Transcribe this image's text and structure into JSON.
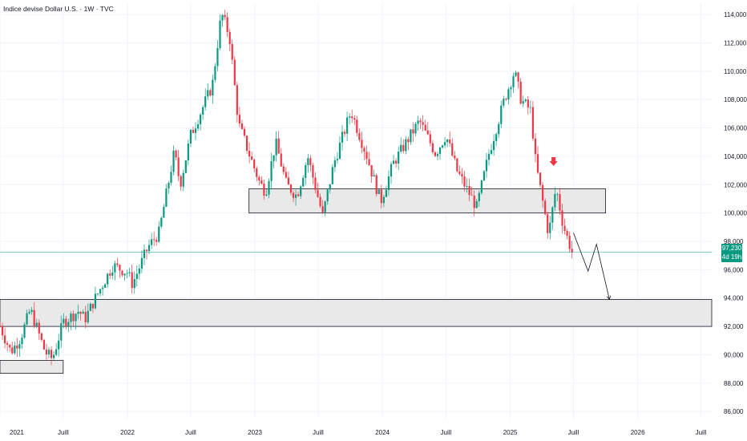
{
  "header": {
    "title": "Indice devise Dollar U.S. · 1W · TVC"
  },
  "last_price": {
    "value": "97,230",
    "countdown": "4d 19h"
  },
  "colors": {
    "up": "#089981",
    "down": "#f23645",
    "zone_fill": "#e9e9e9",
    "zone_border": "#131722",
    "grid": "#f0f3fa",
    "arrow": "#f23645",
    "projection": "#131722"
  },
  "chart_data": {
    "type": "candlestick",
    "title": "Indice devise Dollar U.S. · 1W · TVC",
    "ylim": [
      85.5,
      114.8
    ],
    "xlim": [
      "2021-01-01",
      "2026-08-01"
    ],
    "y_ticks": [
      {
        "value": 86,
        "label": "86,000"
      },
      {
        "value": 88,
        "label": "88,000"
      },
      {
        "value": 90,
        "label": "90,000"
      },
      {
        "value": 92,
        "label": "92,000"
      },
      {
        "value": 94,
        "label": "94,000"
      },
      {
        "value": 96,
        "label": "96,000"
      },
      {
        "value": 98,
        "label": "98,000"
      },
      {
        "value": 100,
        "label": "100,000"
      },
      {
        "value": 102,
        "label": "102,000"
      },
      {
        "value": 104,
        "label": "104,000"
      },
      {
        "value": 106,
        "label": "106,000"
      },
      {
        "value": 108,
        "label": "108,000"
      },
      {
        "value": 110,
        "label": "110,000"
      },
      {
        "value": 112,
        "label": "112,000"
      },
      {
        "value": 114,
        "label": "114,000"
      }
    ],
    "x_ticks": [
      {
        "date": "2021-01-01",
        "label": "2021"
      },
      {
        "date": "2021-07-01",
        "label": "Juill"
      },
      {
        "date": "2022-01-01",
        "label": "2022"
      },
      {
        "date": "2022-07-01",
        "label": "Juill"
      },
      {
        "date": "2023-01-01",
        "label": "2023"
      },
      {
        "date": "2023-07-01",
        "label": "Juill"
      },
      {
        "date": "2024-01-01",
        "label": "2024"
      },
      {
        "date": "2024-07-01",
        "label": "Juill"
      },
      {
        "date": "2025-01-01",
        "label": "2025"
      },
      {
        "date": "2025-07-01",
        "label": "Juill"
      },
      {
        "date": "2026-01-01",
        "label": "2026"
      },
      {
        "date": "2026-07-01",
        "label": "Juill"
      }
    ],
    "path": [
      [
        "2021-01-01",
        92.0
      ],
      [
        "2021-02-01",
        90.2
      ],
      [
        "2021-03-01",
        91.2
      ],
      [
        "2021-03-29",
        93.2
      ],
      [
        "2021-05-10",
        90.2
      ],
      [
        "2021-05-31",
        89.7
      ],
      [
        "2021-07-01",
        92.3
      ],
      [
        "2021-08-15",
        93.1
      ],
      [
        "2021-09-01",
        92.5
      ],
      [
        "2021-10-01",
        94.0
      ],
      [
        "2021-11-20",
        96.3
      ],
      [
        "2022-01-01",
        95.8
      ],
      [
        "2022-01-15",
        95.0
      ],
      [
        "2022-03-01",
        97.6
      ],
      [
        "2022-04-01",
        98.6
      ],
      [
        "2022-05-15",
        104.3
      ],
      [
        "2022-06-01",
        102.0
      ],
      [
        "2022-07-01",
        105.5
      ],
      [
        "2022-09-01",
        109.0
      ],
      [
        "2022-09-27",
        114.1
      ],
      [
        "2022-10-20",
        112.5
      ],
      [
        "2022-11-15",
        106.3
      ],
      [
        "2022-12-15",
        104.2
      ],
      [
        "2023-01-15",
        102.1
      ],
      [
        "2023-02-01",
        101.5
      ],
      [
        "2023-03-01",
        105.0
      ],
      [
        "2023-04-01",
        102.0
      ],
      [
        "2023-05-01",
        101.2
      ],
      [
        "2023-06-01",
        104.0
      ],
      [
        "2023-07-14",
        99.8
      ],
      [
        "2023-08-15",
        103.5
      ],
      [
        "2023-10-03",
        107.2
      ],
      [
        "2023-11-15",
        104.2
      ],
      [
        "2023-12-27",
        100.8
      ],
      [
        "2024-02-01",
        103.5
      ],
      [
        "2024-04-16",
        106.5
      ],
      [
        "2024-06-01",
        104.2
      ],
      [
        "2024-07-01",
        105.5
      ],
      [
        "2024-08-01",
        103.0
      ],
      [
        "2024-09-27",
        100.4
      ],
      [
        "2024-11-01",
        104.2
      ],
      [
        "2024-12-15",
        108.0
      ],
      [
        "2025-01-13",
        110.0
      ],
      [
        "2025-02-01",
        108.0
      ],
      [
        "2025-03-01",
        107.2
      ],
      [
        "2025-03-15",
        103.5
      ],
      [
        "2025-04-21",
        98.5
      ],
      [
        "2025-05-12",
        101.8
      ],
      [
        "2025-06-01",
        99.2
      ],
      [
        "2025-06-27",
        97.23
      ]
    ],
    "zones": [
      {
        "x0": "2022-12-15",
        "x1": "2025-10-01",
        "y0": 100.0,
        "y1": 101.7
      },
      {
        "x0": "2021-01-01",
        "x1": "2026-08-01",
        "y0": 92.0,
        "y1": 93.9
      },
      {
        "x0": "2021-01-01",
        "x1": "2021-07-01",
        "y0": 88.7,
        "y1": 89.6
      }
    ],
    "projection": [
      [
        "2025-07-01",
        98.6
      ],
      [
        "2025-08-12",
        95.9
      ],
      [
        "2025-09-05",
        97.8
      ],
      [
        "2025-10-12",
        93.9
      ]
    ],
    "markers": [
      {
        "date": "2025-05-05",
        "y": 103.6,
        "shape": "down-arrow"
      }
    ],
    "last_price_line": 97.23
  }
}
